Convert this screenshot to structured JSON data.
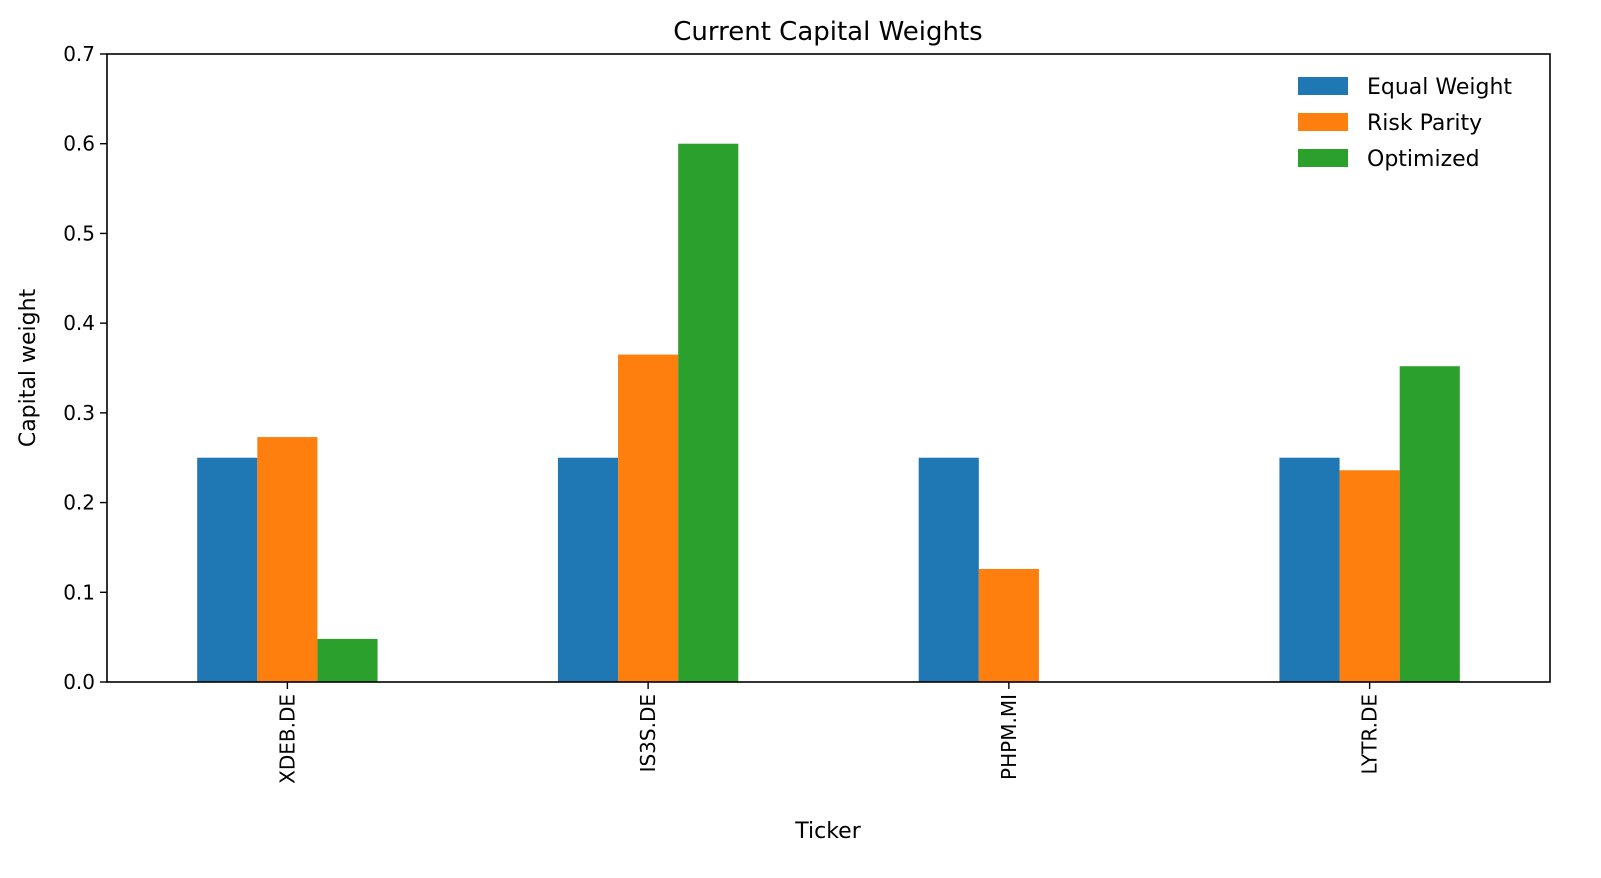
{
  "chart_data": {
    "type": "bar",
    "title": "Current Capital Weights",
    "xlabel": "Ticker",
    "ylabel": "Capital weight",
    "categories": [
      "XDEB.DE",
      "IS3S.DE",
      "PHPM.MI",
      "LYTR.DE"
    ],
    "series": [
      {
        "name": "Equal Weight",
        "color": "#1f77b4",
        "values": [
          0.25,
          0.25,
          0.25,
          0.25
        ]
      },
      {
        "name": "Risk Parity",
        "color": "#ff7f0e",
        "values": [
          0.273,
          0.365,
          0.126,
          0.236
        ]
      },
      {
        "name": "Optimized",
        "color": "#2ca02c",
        "values": [
          0.048,
          0.6,
          0.0,
          0.352
        ]
      }
    ],
    "ylim": [
      0,
      0.7
    ],
    "yticks": [
      "0.0",
      "0.1",
      "0.2",
      "0.3",
      "0.4",
      "0.5",
      "0.6",
      "0.7"
    ],
    "grid": false,
    "legend_position": "top-right"
  }
}
